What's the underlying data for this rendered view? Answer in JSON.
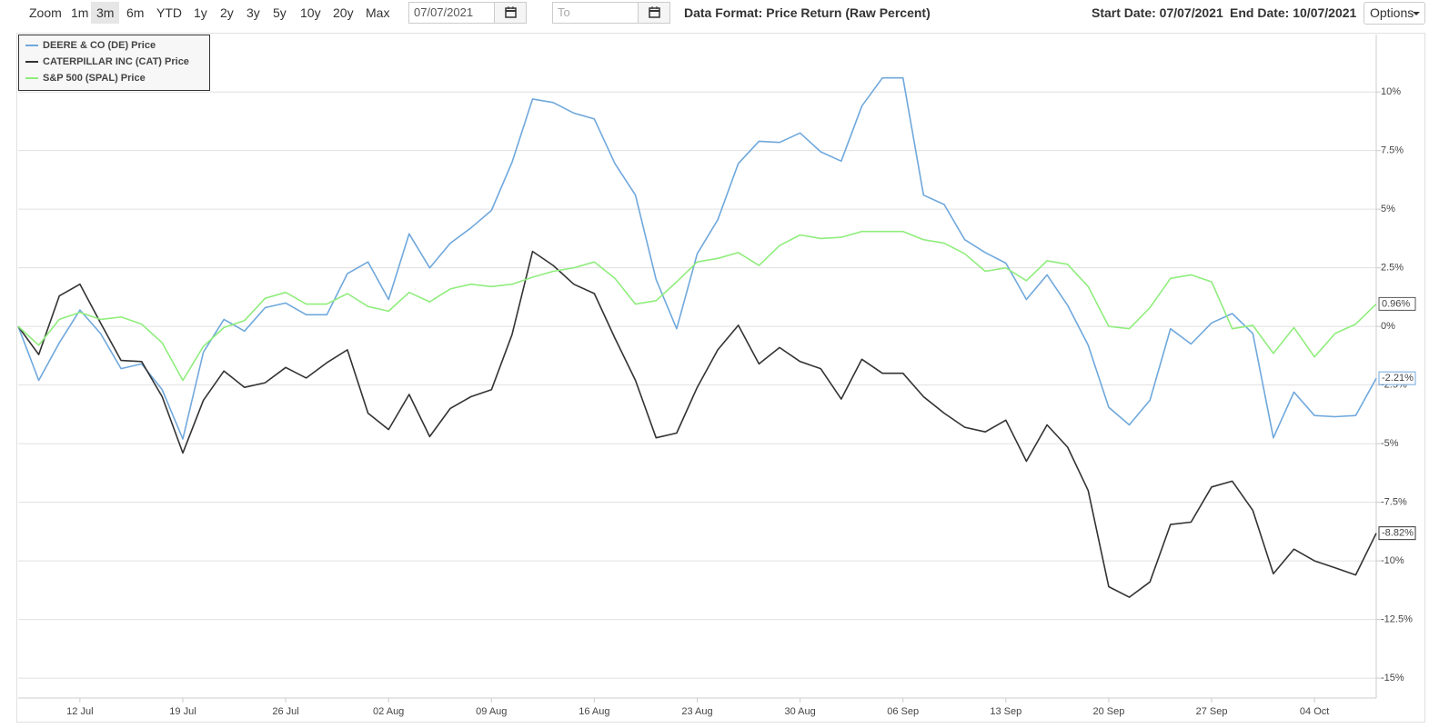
{
  "toolbar": {
    "zoom_label": "Zoom",
    "zoom_buttons": [
      {
        "label": "1m"
      },
      {
        "label": "3m",
        "active": true
      },
      {
        "label": "6m"
      },
      {
        "label": "YTD"
      },
      {
        "label": "1y"
      },
      {
        "label": "2y"
      },
      {
        "label": "3y"
      },
      {
        "label": "5y"
      },
      {
        "label": "10y"
      },
      {
        "label": "20y"
      },
      {
        "label": "Max"
      }
    ],
    "from_date": "07/07/2021",
    "to_placeholder": "To",
    "data_format": "Data Format: Price Return (Raw Percent)",
    "start_date": "Start Date: 07/07/2021",
    "end_date": "End Date: 10/07/2021",
    "options": "Options"
  },
  "chart_data": {
    "type": "line",
    "categories": [
      null,
      null,
      null,
      "12 Jul",
      null,
      null,
      null,
      null,
      "19 Jul",
      null,
      null,
      null,
      null,
      "26 Jul",
      null,
      null,
      null,
      null,
      "02 Aug",
      null,
      null,
      null,
      null,
      "09 Aug",
      null,
      null,
      null,
      null,
      "16 Aug",
      null,
      null,
      null,
      null,
      "23 Aug",
      null,
      null,
      null,
      null,
      "30 Aug",
      null,
      null,
      null,
      null,
      "06 Sep",
      null,
      null,
      null,
      null,
      "13 Sep",
      null,
      null,
      null,
      null,
      "20 Sep",
      null,
      null,
      null,
      null,
      "27 Sep",
      null,
      null,
      null,
      null,
      "04 Oct",
      null,
      null,
      null
    ],
    "ylim": [
      -15.85,
      12.45
    ],
    "yticks": [
      {
        "value": 10,
        "label": "10%"
      },
      {
        "value": 7.5,
        "label": "7.5%"
      },
      {
        "value": 5,
        "label": "5%"
      },
      {
        "value": 2.5,
        "label": "2.5%"
      },
      {
        "value": 0,
        "label": "0%"
      },
      {
        "value": -2.5,
        "label": "-2.5%"
      },
      {
        "value": -5,
        "label": "-5%"
      },
      {
        "value": -7.5,
        "label": "-7.5%"
      },
      {
        "value": -10,
        "label": "-10%"
      },
      {
        "value": -12.5,
        "label": "-12.5%"
      },
      {
        "value": -15,
        "label": "-15%"
      }
    ],
    "grid": true,
    "legend": "top-left",
    "series": [
      {
        "name": "DEERE & CO (DE) Price",
        "color": "#6fa8dc",
        "values": [
          0,
          -2.3,
          -0.7,
          0.7,
          -0.3,
          -1.8,
          -1.6,
          -2.7,
          -4.8,
          -1.1,
          0.3,
          -0.2,
          0.8,
          1.0,
          0.5,
          0.5,
          2.25,
          2.75,
          1.15,
          3.95,
          2.5,
          3.55,
          4.2,
          4.95,
          7.0,
          9.7,
          9.55,
          9.1,
          8.85,
          6.95,
          5.6,
          2.0,
          -0.1,
          3.1,
          4.55,
          6.95,
          7.9,
          7.85,
          8.25,
          7.45,
          7.05,
          9.4,
          10.6,
          10.6,
          5.6,
          5.2,
          3.7,
          3.15,
          2.7,
          1.15,
          2.2,
          0.9,
          -0.8,
          -3.45,
          -4.2,
          -3.15,
          -0.1,
          -0.75,
          0.15,
          0.55,
          -0.3,
          -4.75,
          -2.8,
          -3.8,
          -3.85,
          -3.8,
          -2.21
        ],
        "value_labels": [
          null,
          null,
          null,
          null,
          null,
          null,
          null,
          null,
          null,
          null,
          null,
          null,
          null,
          null,
          null,
          null,
          null,
          null,
          null,
          null,
          null,
          null,
          null,
          null,
          null,
          null,
          null,
          null,
          null,
          null,
          null,
          null,
          null,
          null,
          null,
          null,
          null,
          null,
          null,
          null,
          null,
          null,
          null,
          null,
          null,
          null,
          null,
          null,
          null,
          null,
          null,
          null,
          null,
          null,
          null,
          null,
          null,
          null,
          null,
          null,
          null,
          null,
          null,
          null,
          null,
          null,
          "-2.21%"
        ]
      },
      {
        "name": "CATERPILLAR INC (CAT) Price",
        "color": "#333333",
        "values": [
          0,
          -1.2,
          1.3,
          1.8,
          0.15,
          -1.45,
          -1.5,
          -3.0,
          -5.4,
          -3.15,
          -1.9,
          -2.6,
          -2.4,
          -1.75,
          -2.2,
          -1.55,
          -1.0,
          -3.7,
          -4.4,
          -2.9,
          -4.7,
          -3.5,
          -3.0,
          -2.7,
          -0.35,
          3.2,
          2.6,
          1.8,
          1.4,
          -0.5,
          -2.3,
          -4.75,
          -4.55,
          -2.6,
          -1.0,
          0.05,
          -1.6,
          -0.9,
          -1.5,
          -1.8,
          -3.1,
          -1.4,
          -2.0,
          -2.0,
          -3.0,
          -3.7,
          -4.3,
          -4.5,
          -4.0,
          -5.75,
          -4.2,
          -5.15,
          -7.0,
          -11.1,
          -11.55,
          -10.9,
          -8.45,
          -8.35,
          -6.85,
          -6.6,
          -7.85,
          -10.55,
          -9.5,
          -10.0,
          -10.3,
          -10.6,
          -8.82
        ],
        "value_labels": [
          null,
          null,
          null,
          null,
          null,
          null,
          null,
          null,
          null,
          null,
          null,
          null,
          null,
          null,
          null,
          null,
          null,
          null,
          null,
          null,
          null,
          null,
          null,
          null,
          null,
          null,
          null,
          null,
          null,
          null,
          null,
          null,
          null,
          null,
          null,
          null,
          null,
          null,
          null,
          null,
          null,
          null,
          null,
          null,
          null,
          null,
          null,
          null,
          null,
          null,
          null,
          null,
          null,
          null,
          null,
          null,
          null,
          null,
          null,
          null,
          null,
          null,
          null,
          null,
          null,
          null,
          "-8.82%"
        ]
      },
      {
        "name": "S&P 500 (SPAL) Price",
        "color": "#90ed7d",
        "values": [
          0,
          -0.8,
          0.3,
          0.6,
          0.3,
          0.4,
          0.1,
          -0.7,
          -2.3,
          -0.85,
          -0.05,
          0.25,
          1.2,
          1.45,
          0.95,
          0.95,
          1.4,
          0.85,
          0.65,
          1.45,
          1.05,
          1.6,
          1.8,
          1.7,
          1.8,
          2.1,
          2.35,
          2.5,
          2.75,
          2.05,
          0.95,
          1.1,
          1.9,
          2.75,
          2.9,
          3.15,
          2.6,
          3.45,
          3.9,
          3.75,
          3.8,
          4.05,
          4.05,
          4.05,
          3.7,
          3.55,
          3.1,
          2.35,
          2.5,
          1.95,
          2.8,
          2.65,
          1.7,
          0.0,
          -0.1,
          0.8,
          2.05,
          2.2,
          1.9,
          -0.1,
          0.05,
          -1.15,
          -0.05,
          -1.3,
          -0.3,
          0.1,
          0.96
        ],
        "value_labels": [
          null,
          null,
          null,
          null,
          null,
          null,
          null,
          null,
          null,
          null,
          null,
          null,
          null,
          null,
          null,
          null,
          null,
          null,
          null,
          null,
          null,
          null,
          null,
          null,
          null,
          null,
          null,
          null,
          null,
          null,
          null,
          null,
          null,
          null,
          null,
          null,
          null,
          null,
          null,
          null,
          null,
          null,
          null,
          null,
          null,
          null,
          null,
          null,
          null,
          null,
          null,
          null,
          null,
          null,
          null,
          null,
          null,
          null,
          null,
          null,
          null,
          null,
          null,
          null,
          null,
          null,
          "0.96%"
        ]
      }
    ]
  }
}
